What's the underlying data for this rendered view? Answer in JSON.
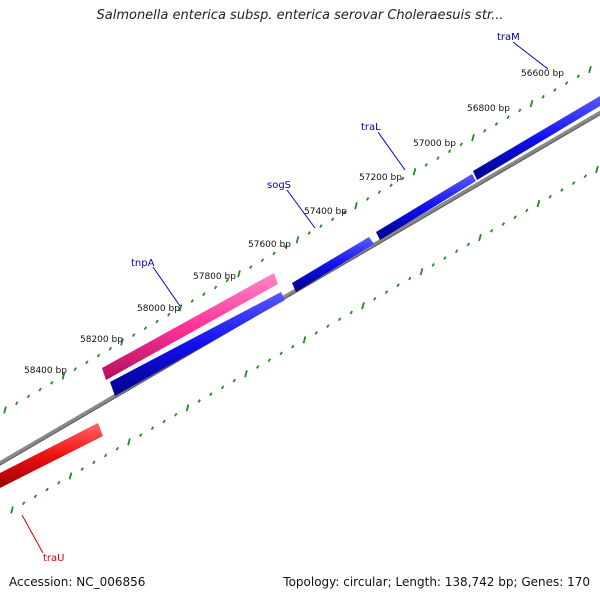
{
  "title": "Salmonella enterica subsp. enterica serovar Choleraesuis str...",
  "footer": {
    "accession": "Accession: NC_006856",
    "summary": "Topology: circular; Length: 138,742 bp; Genes: 170"
  },
  "ticks": [
    {
      "label": "56600 bp",
      "bp": 56600
    },
    {
      "label": "56800 bp",
      "bp": 56800
    },
    {
      "label": "57000 bp",
      "bp": 57000
    },
    {
      "label": "57200 bp",
      "bp": 57200
    },
    {
      "label": "57400 bp",
      "bp": 57400
    },
    {
      "label": "57600 bp",
      "bp": 57600
    },
    {
      "label": "57800 bp",
      "bp": 57800
    },
    {
      "label": "58000 bp",
      "bp": 58000
    },
    {
      "label": "58200 bp",
      "bp": 58200
    },
    {
      "label": "58400 bp",
      "bp": 58400
    }
  ],
  "genes": [
    {
      "name": "traM",
      "color": "#0000aa"
    },
    {
      "name": "traL",
      "color": "#0000aa"
    },
    {
      "name": "sogS",
      "color": "#0000aa"
    },
    {
      "name": "tnpA",
      "color": "#0000aa"
    },
    {
      "name": "traU",
      "color": "#dd0000"
    }
  ],
  "colors": {
    "forward_gene": "#1a1ae6",
    "mobile_element": "#ff3399",
    "reverse_gene": "#ee1111",
    "backbone": "#777777",
    "dots": "#228822"
  }
}
